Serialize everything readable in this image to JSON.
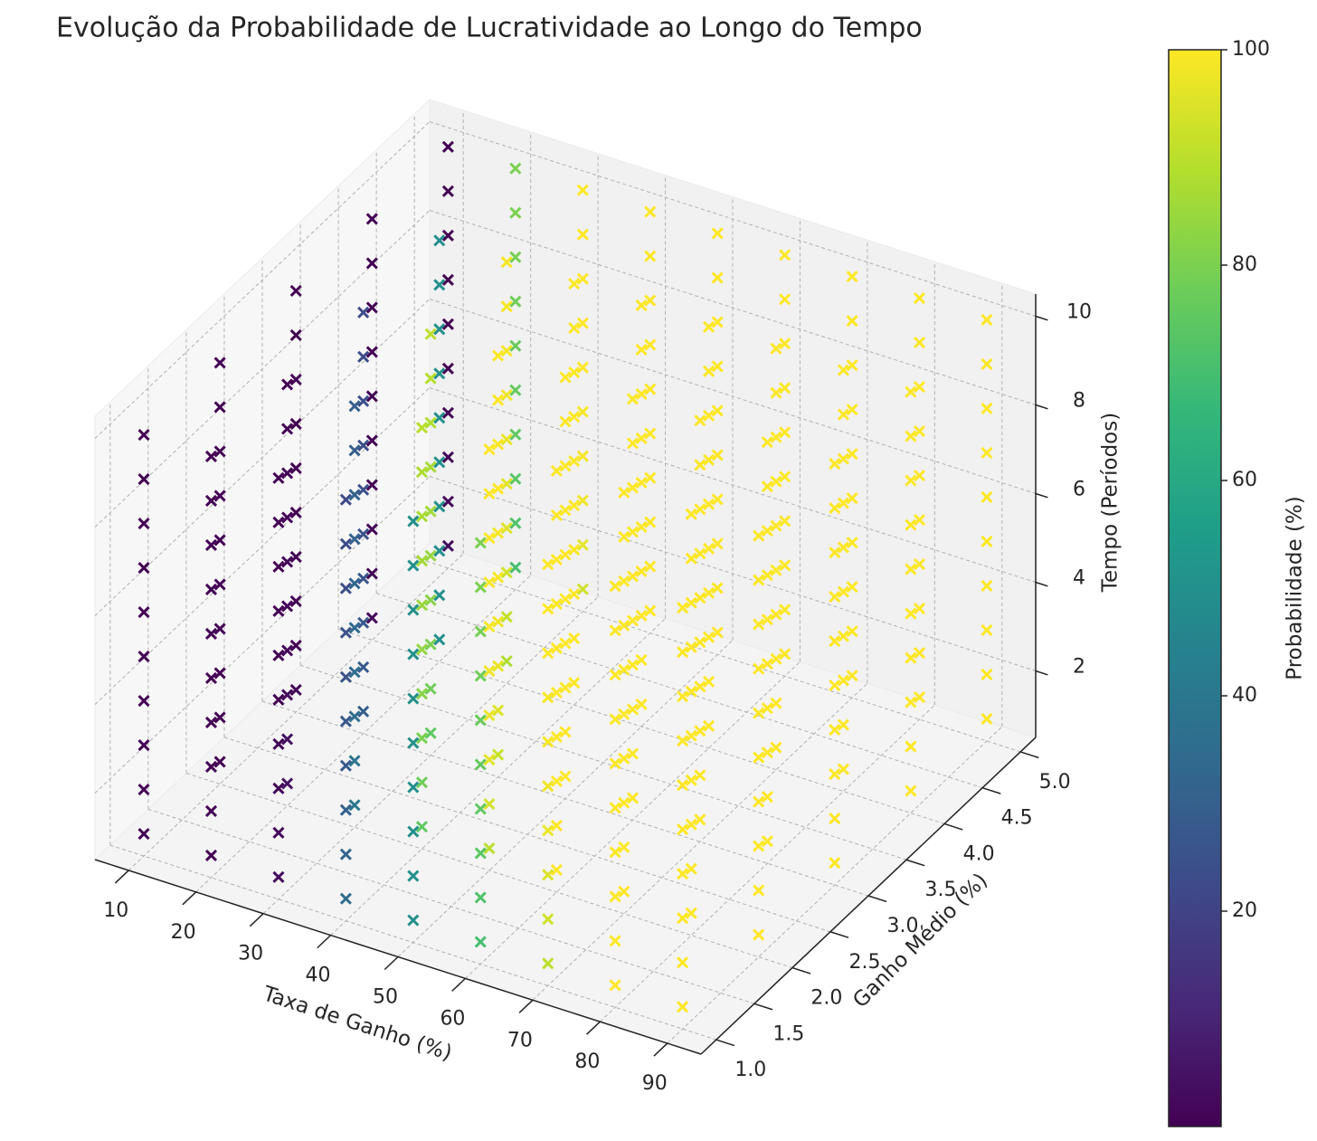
{
  "chart_data": {
    "type": "scatter3d",
    "title": "Evolução da Probabilidade de Lucratividade ao Longo do Tempo",
    "x_label": "Taxa de Ganho (%)",
    "y_label": "Ganho Médio (%)",
    "z_label": "Tempo (Períodos)",
    "colorbar_label": "Probabilidade (%)",
    "colormap": "viridis",
    "marker": "x",
    "grid": true,
    "x": [
      10,
      20,
      30,
      40,
      50,
      60,
      70,
      80,
      90
    ],
    "y": [
      1,
      2,
      3,
      4,
      5
    ],
    "z": [
      1,
      2,
      3,
      4,
      5,
      6,
      7,
      8,
      9,
      10
    ],
    "xlim": [
      5,
      95
    ],
    "ylim": [
      0.8,
      5.2
    ],
    "zlim": [
      0.5,
      10.5
    ],
    "clim": [
      0,
      100
    ],
    "xticks": [
      10,
      20,
      30,
      40,
      50,
      60,
      70,
      80,
      90
    ],
    "yticks": [
      {
        "value": 1,
        "label": "1.0"
      },
      {
        "value": 1.5,
        "label": "1.5"
      },
      {
        "value": 2,
        "label": "2.0"
      },
      {
        "value": 2.5,
        "label": "2.5"
      },
      {
        "value": 3,
        "label": "3.0"
      },
      {
        "value": 3.5,
        "label": "3.5"
      },
      {
        "value": 4,
        "label": "4.0"
      },
      {
        "value": 4.5,
        "label": "4.5"
      },
      {
        "value": 5,
        "label": "5.0"
      }
    ],
    "zticks": [
      2,
      4,
      6,
      8,
      10
    ],
    "cticks": [
      20,
      40,
      60,
      80,
      100
    ],
    "values": [
      [
        [
          0,
          0,
          0,
          0,
          0,
          0,
          0,
          0,
          0,
          0
        ],
        [
          0,
          0,
          0,
          0,
          0,
          0,
          0,
          0,
          0,
          0
        ],
        [
          1,
          0,
          0,
          0,
          0,
          0,
          0,
          0,
          0,
          0
        ],
        [
          2,
          1,
          1,
          0,
          0,
          0,
          0,
          0,
          0,
          0
        ],
        [
          3,
          2,
          1,
          1,
          0,
          0,
          0,
          0,
          0,
          0
        ]
      ],
      [
        [
          0,
          0,
          0,
          0,
          0,
          0,
          0,
          0,
          0,
          0
        ],
        [
          5,
          4,
          3,
          2,
          2,
          1,
          1,
          1,
          0,
          0
        ],
        [
          30,
          28,
          27,
          26,
          25,
          25,
          24,
          24,
          23,
          23
        ],
        [
          50,
          50,
          50,
          50,
          50,
          50,
          50,
          50,
          50,
          50
        ],
        [
          70,
          72,
          74,
          75,
          76,
          77,
          78,
          79,
          80,
          80
        ]
      ],
      [
        [
          3,
          2,
          1,
          1,
          0,
          0,
          0,
          0,
          0,
          0
        ],
        [
          40,
          38,
          36,
          35,
          34,
          33,
          32,
          31,
          30,
          30
        ],
        [
          75,
          78,
          80,
          82,
          84,
          86,
          87,
          88,
          89,
          90
        ],
        [
          88,
          91,
          93,
          95,
          96,
          97,
          98,
          99,
          99,
          99
        ],
        [
          93,
          96,
          98,
          99,
          99,
          100,
          100,
          100,
          100,
          100
        ]
      ],
      [
        [
          35,
          32,
          30,
          28,
          27,
          26,
          25,
          24,
          23,
          22
        ],
        [
          75,
          78,
          80,
          82,
          84,
          85,
          86,
          87,
          88,
          89
        ],
        [
          92,
          95,
          97,
          98,
          99,
          99,
          100,
          100,
          100,
          100
        ],
        [
          100,
          100,
          100,
          100,
          100,
          100,
          100,
          100,
          100,
          100
        ],
        [
          100,
          100,
          100,
          100,
          100,
          100,
          100,
          100,
          100,
          100
        ]
      ],
      [
        [
          50,
          50,
          50,
          50,
          50,
          50,
          50,
          50,
          50,
          50
        ],
        [
          90,
          94,
          96,
          97,
          98,
          99,
          99,
          100,
          100,
          100
        ],
        [
          100,
          100,
          100,
          100,
          100,
          100,
          100,
          100,
          100,
          100
        ],
        [
          100,
          100,
          100,
          100,
          100,
          100,
          100,
          100,
          100,
          100
        ],
        [
          100,
          100,
          100,
          100,
          100,
          100,
          100,
          100,
          100,
          100
        ]
      ],
      [
        [
          70,
          72,
          74,
          75,
          76,
          77,
          78,
          79,
          80,
          80
        ],
        [
          100,
          100,
          100,
          100,
          100,
          100,
          100,
          100,
          100,
          100
        ],
        [
          100,
          100,
          100,
          100,
          100,
          100,
          100,
          100,
          100,
          100
        ],
        [
          100,
          100,
          100,
          100,
          100,
          100,
          100,
          100,
          100,
          100
        ],
        [
          100,
          100,
          100,
          100,
          100,
          100,
          100,
          100,
          100,
          100
        ]
      ],
      [
        [
          90,
          93,
          95,
          97,
          98,
          99,
          99,
          100,
          100,
          100
        ],
        [
          100,
          100,
          100,
          100,
          100,
          100,
          100,
          100,
          100,
          100
        ],
        [
          100,
          100,
          100,
          100,
          100,
          100,
          100,
          100,
          100,
          100
        ],
        [
          100,
          100,
          100,
          100,
          100,
          100,
          100,
          100,
          100,
          100
        ],
        [
          100,
          100,
          100,
          100,
          100,
          100,
          100,
          100,
          100,
          100
        ]
      ],
      [
        [
          100,
          100,
          100,
          100,
          100,
          100,
          100,
          100,
          100,
          100
        ],
        [
          100,
          100,
          100,
          100,
          100,
          100,
          100,
          100,
          100,
          100
        ],
        [
          100,
          100,
          100,
          100,
          100,
          100,
          100,
          100,
          100,
          100
        ],
        [
          100,
          100,
          100,
          100,
          100,
          100,
          100,
          100,
          100,
          100
        ],
        [
          100,
          100,
          100,
          100,
          100,
          100,
          100,
          100,
          100,
          100
        ]
      ],
      [
        [
          100,
          100,
          100,
          100,
          100,
          100,
          100,
          100,
          100,
          100
        ],
        [
          100,
          100,
          100,
          100,
          100,
          100,
          100,
          100,
          100,
          100
        ],
        [
          100,
          100,
          100,
          100,
          100,
          100,
          100,
          100,
          100,
          100
        ],
        [
          100,
          100,
          100,
          100,
          100,
          100,
          100,
          100,
          100,
          100
        ],
        [
          100,
          100,
          100,
          100,
          100,
          100,
          100,
          100,
          100,
          100
        ]
      ]
    ]
  }
}
